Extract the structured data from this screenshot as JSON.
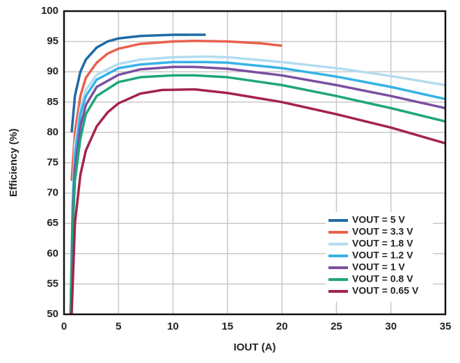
{
  "chart_data": {
    "type": "line",
    "x_label": "IOUT (A)",
    "y_label": "Efficiency (%)",
    "xlim": [
      0,
      35
    ],
    "ylim": [
      50,
      100
    ],
    "xticks": [
      0,
      5,
      10,
      15,
      20,
      25,
      30,
      35
    ],
    "yticks": [
      50,
      55,
      60,
      65,
      70,
      75,
      80,
      85,
      90,
      95,
      100
    ],
    "grid": true,
    "legend": "lower right",
    "series": [
      {
        "name": "VOUT = 5 V",
        "color": "#1f6aa5",
        "x": [
          0.7,
          1,
          1.5,
          2,
          3,
          4,
          5,
          7,
          10,
          13
        ],
        "values": [
          80,
          86,
          90,
          92,
          94,
          95,
          95.5,
          95.9,
          96.1,
          96.1
        ]
      },
      {
        "name": "VOUT = 3.3 V",
        "color": "#e8604c",
        "x": [
          0.7,
          1,
          1.5,
          2,
          3,
          4,
          5,
          7,
          10,
          12,
          15,
          18,
          20
        ],
        "values": [
          72,
          80,
          86,
          89,
          91.5,
          93,
          93.8,
          94.6,
          95,
          95.1,
          95,
          94.7,
          94.3
        ]
      },
      {
        "name": "VOUT = 1.8 V",
        "color": "#b3dcf0",
        "x": [
          0.6,
          0.8,
          1,
          1.5,
          2,
          3,
          5,
          7,
          10,
          13,
          15,
          20,
          25,
          30,
          35
        ],
        "values": [
          50,
          70,
          78,
          84,
          87,
          89.5,
          91.3,
          92,
          92.4,
          92.5,
          92.4,
          91.6,
          90.6,
          89.3,
          87.8
        ]
      },
      {
        "name": "VOUT = 1.2 V",
        "color": "#36b3e6",
        "x": [
          0.6,
          0.8,
          1,
          1.5,
          2,
          3,
          5,
          7,
          10,
          13,
          15,
          20,
          25,
          30,
          35
        ],
        "values": [
          50,
          68,
          76,
          83,
          86,
          88.7,
          90.6,
          91.2,
          91.6,
          91.6,
          91.5,
          90.6,
          89.2,
          87.5,
          85.5
        ]
      },
      {
        "name": "VOUT = 1 V",
        "color": "#7b4fa0",
        "x": [
          0.6,
          0.8,
          1,
          1.5,
          2,
          3,
          5,
          7,
          10,
          12,
          15,
          20,
          25,
          30,
          35
        ],
        "values": [
          50,
          66,
          74,
          81,
          84.5,
          87.5,
          89.5,
          90.4,
          90.8,
          90.8,
          90.5,
          89.4,
          87.8,
          86,
          84
        ]
      },
      {
        "name": "VOUT = 0.8 V",
        "color": "#1fa67a",
        "x": [
          0.6,
          0.8,
          1,
          1.5,
          2,
          3,
          5,
          7,
          10,
          12,
          15,
          20,
          25,
          30,
          35
        ],
        "values": [
          50,
          64,
          72,
          79,
          83,
          86,
          88.3,
          89.1,
          89.4,
          89.4,
          89.1,
          87.8,
          86,
          84,
          81.8
        ]
      },
      {
        "name": "VOUT = 0.65 V",
        "color": "#a3244a",
        "x": [
          0.7,
          0.9,
          1,
          1.5,
          2,
          3,
          4,
          5,
          7,
          9,
          12,
          15,
          20,
          25,
          30,
          35
        ],
        "values": [
          50,
          60,
          65,
          73,
          77,
          81,
          83.3,
          84.8,
          86.4,
          87,
          87.1,
          86.5,
          85,
          83,
          80.8,
          78.2
        ]
      }
    ]
  }
}
